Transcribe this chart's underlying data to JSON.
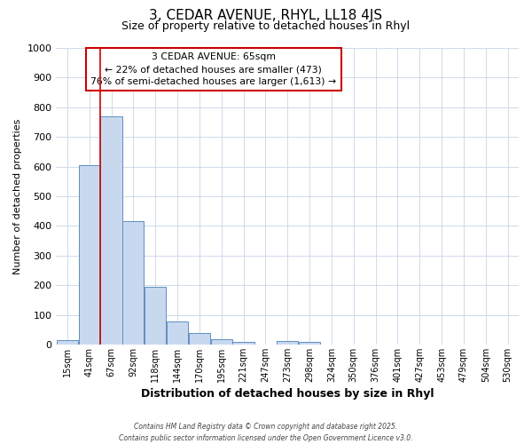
{
  "title": "3, CEDAR AVENUE, RHYL, LL18 4JS",
  "subtitle": "Size of property relative to detached houses in Rhyl",
  "xlabel": "Distribution of detached houses by size in Rhyl",
  "ylabel": "Number of detached properties",
  "bar_color": "#c8d8ef",
  "bar_edge_color": "#6090c0",
  "background_color": "#ffffff",
  "grid_color": "#c8d4e8",
  "categories": [
    "15sqm",
    "41sqm",
    "67sqm",
    "92sqm",
    "118sqm",
    "144sqm",
    "170sqm",
    "195sqm",
    "221sqm",
    "247sqm",
    "273sqm",
    "298sqm",
    "324sqm",
    "350sqm",
    "376sqm",
    "401sqm",
    "427sqm",
    "453sqm",
    "479sqm",
    "504sqm",
    "530sqm"
  ],
  "values": [
    15,
    605,
    770,
    415,
    195,
    78,
    38,
    18,
    10,
    0,
    12,
    8,
    0,
    0,
    0,
    0,
    0,
    0,
    0,
    0,
    0
  ],
  "ylim": [
    0,
    1000
  ],
  "yticks": [
    0,
    100,
    200,
    300,
    400,
    500,
    600,
    700,
    800,
    900,
    1000
  ],
  "vline_color": "#cc0000",
  "annotation_title": "3 CEDAR AVENUE: 65sqm",
  "annotation_line1": "← 22% of detached houses are smaller (473)",
  "annotation_line2": "76% of semi-detached houses are larger (1,613) →",
  "annotation_box_color": "#ffffff",
  "annotation_box_edge": "#cc0000",
  "footer1": "Contains HM Land Registry data © Crown copyright and database right 2025.",
  "footer2": "Contains public sector information licensed under the Open Government Licence v3.0."
}
